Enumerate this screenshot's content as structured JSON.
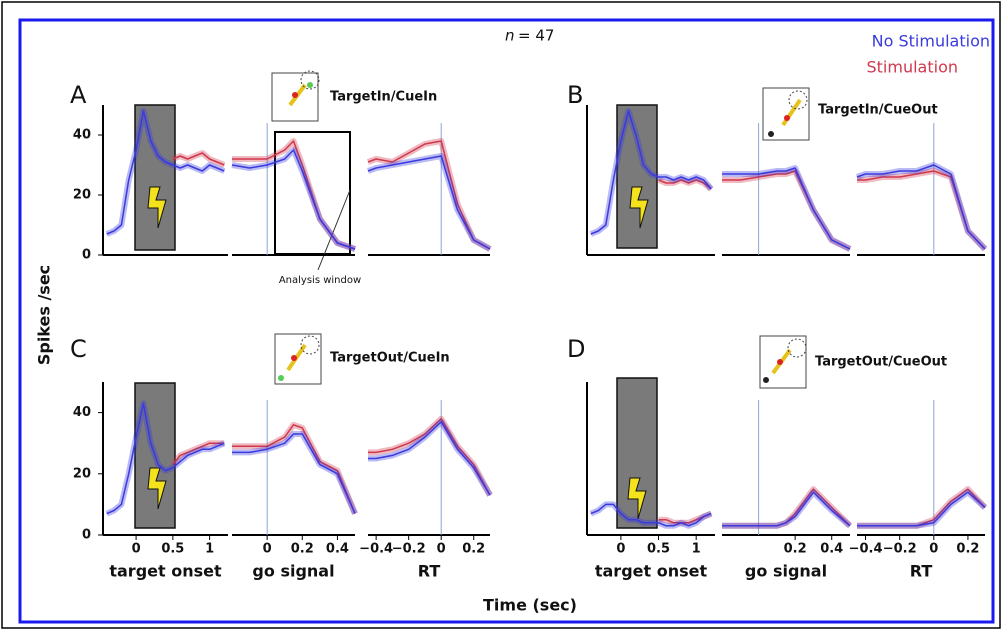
{
  "figure": {
    "n_symbol": "n",
    "n_value": "= 47",
    "y_label": "Spikes /sec",
    "x_label": "Time (sec)",
    "annotation": "Analysis window",
    "legend": [
      {
        "name": "No Stimulation",
        "color": "#3a3adf"
      },
      {
        "name": "Stimulation",
        "color": "#d0384c"
      }
    ]
  },
  "panels": [
    {
      "letter": "A",
      "condition": "TargetIn/CueIn"
    },
    {
      "letter": "B",
      "condition": "TargetIn/CueOut"
    },
    {
      "letter": "C",
      "condition": "TargetOut/CueIn"
    },
    {
      "letter": "D",
      "condition": "TargetOut/CueOut"
    }
  ],
  "chart_data": [
    {
      "type": "line",
      "x": [
        -0.4,
        -0.3,
        -0.2,
        -0.1,
        0,
        0.1,
        0.2,
        0.3,
        0.4,
        0.5,
        0.6,
        0.7,
        0.8,
        0.9,
        1,
        1.1,
        1.2
      ],
      "xlim": [
        -0.45,
        1.25
      ],
      "ylim": [
        0,
        50
      ],
      "yticks": [
        0,
        20,
        40
      ],
      "series": [
        {
          "values": [
            7,
            8,
            10,
            25,
            35,
            48,
            38,
            33,
            31,
            30,
            29,
            30,
            29,
            28,
            30,
            29,
            28
          ]
        },
        {
          "values": [
            null,
            null,
            null,
            null,
            null,
            null,
            null,
            null,
            null,
            32,
            33,
            32,
            33,
            34,
            32,
            31,
            30
          ]
        }
      ]
    },
    {
      "type": "line",
      "x": [
        -0.2,
        -0.1,
        0,
        0.1,
        0.15,
        0.2,
        0.3,
        0.4,
        0.5
      ],
      "xlim": [
        -0.2,
        0.5
      ],
      "ylim": [
        0,
        50
      ],
      "series": [
        {
          "values": [
            30,
            29,
            30,
            32,
            35,
            28,
            12,
            4,
            2
          ]
        },
        {
          "values": [
            32,
            32,
            32,
            35,
            38,
            30,
            12,
            4,
            2
          ]
        }
      ]
    },
    {
      "type": "line",
      "x": [
        -0.45,
        -0.4,
        -0.3,
        -0.2,
        -0.1,
        0,
        0.1,
        0.2,
        0.3
      ],
      "xlim": [
        -0.45,
        0.3
      ],
      "ylim": [
        0,
        50
      ],
      "series": [
        {
          "values": [
            28,
            29,
            30,
            31,
            32,
            33,
            15,
            5,
            2
          ]
        },
        {
          "values": [
            31,
            32,
            31,
            34,
            37,
            38,
            17,
            5,
            2
          ]
        }
      ]
    },
    {
      "type": "line",
      "x": [
        -0.4,
        -0.3,
        -0.2,
        -0.1,
        0,
        0.1,
        0.2,
        0.3,
        0.4,
        0.5,
        0.6,
        0.7,
        0.8,
        0.9,
        1,
        1.1,
        1.2
      ],
      "xlim": [
        -0.45,
        1.25
      ],
      "ylim": [
        0,
        50
      ],
      "series": [
        {
          "values": [
            7,
            8,
            10,
            25,
            38,
            48,
            40,
            30,
            27,
            26,
            26,
            25,
            26,
            25,
            26,
            25,
            22
          ]
        },
        {
          "values": [
            null,
            null,
            null,
            null,
            null,
            null,
            null,
            null,
            null,
            25,
            24,
            24,
            25,
            24,
            25,
            24,
            22
          ]
        }
      ]
    },
    {
      "type": "line",
      "x": [
        -0.2,
        -0.1,
        0,
        0.1,
        0.15,
        0.2,
        0.3,
        0.4,
        0.5
      ],
      "xlim": [
        -0.2,
        0.5
      ],
      "ylim": [
        0,
        50
      ],
      "series": [
        {
          "values": [
            27,
            27,
            27,
            28,
            28,
            29,
            15,
            5,
            2
          ]
        },
        {
          "values": [
            25,
            25,
            26,
            27,
            27,
            28,
            15,
            5,
            2
          ]
        }
      ]
    },
    {
      "type": "line",
      "x": [
        -0.45,
        -0.4,
        -0.3,
        -0.2,
        -0.1,
        0,
        0.1,
        0.2,
        0.3
      ],
      "xlim": [
        -0.45,
        0.3
      ],
      "ylim": [
        0,
        50
      ],
      "series": [
        {
          "values": [
            26,
            27,
            27,
            28,
            28,
            30,
            27,
            8,
            2
          ]
        },
        {
          "values": [
            25,
            25,
            26,
            26,
            27,
            28,
            26,
            8,
            2
          ]
        }
      ]
    },
    {
      "type": "line",
      "x": [
        -0.4,
        -0.3,
        -0.2,
        -0.1,
        0,
        0.1,
        0.2,
        0.3,
        0.4,
        0.5,
        0.6,
        0.7,
        0.8,
        0.9,
        1,
        1.1,
        1.2
      ],
      "xlim": [
        -0.45,
        1.25
      ],
      "ylim": [
        0,
        50
      ],
      "yticks": [
        0,
        20,
        40
      ],
      "xticks": [
        0,
        0.5,
        1
      ],
      "xlabel": "target onset",
      "series": [
        {
          "values": [
            7,
            8,
            10,
            20,
            32,
            43,
            30,
            23,
            21,
            22,
            24,
            26,
            27,
            28,
            28,
            29,
            30
          ]
        },
        {
          "values": [
            null,
            null,
            null,
            null,
            null,
            null,
            null,
            null,
            null,
            23,
            26,
            27,
            28,
            29,
            30,
            30,
            30
          ]
        }
      ]
    },
    {
      "type": "line",
      "x": [
        -0.2,
        -0.1,
        0,
        0.1,
        0.15,
        0.2,
        0.3,
        0.4,
        0.5
      ],
      "xlim": [
        -0.2,
        0.5
      ],
      "ylim": [
        0,
        50
      ],
      "xticks": [
        0,
        0.2,
        0.4
      ],
      "xlabel": "go signal",
      "series": [
        {
          "values": [
            27,
            27,
            28,
            30,
            33,
            33,
            23,
            20,
            7
          ]
        },
        {
          "values": [
            29,
            29,
            29,
            32,
            36,
            35,
            24,
            21,
            7
          ]
        }
      ]
    },
    {
      "type": "line",
      "x": [
        -0.45,
        -0.4,
        -0.3,
        -0.2,
        -0.1,
        0,
        0.1,
        0.2,
        0.3
      ],
      "xlim": [
        -0.45,
        0.3
      ],
      "ylim": [
        0,
        50
      ],
      "xticks": [
        {
          "value": -0.4,
          "label": "−0.4"
        },
        {
          "value": -0.2,
          "label": "−0.2"
        },
        0,
        0.2
      ],
      "xlabel": "RT",
      "series": [
        {
          "values": [
            25,
            25,
            26,
            28,
            32,
            37,
            28,
            22,
            13
          ]
        },
        {
          "values": [
            27,
            27,
            28,
            30,
            33,
            38,
            29,
            23,
            13
          ]
        }
      ]
    },
    {
      "type": "line",
      "x": [
        -0.4,
        -0.3,
        -0.2,
        -0.1,
        0,
        0.1,
        0.2,
        0.3,
        0.4,
        0.5,
        0.6,
        0.7,
        0.8,
        0.9,
        1,
        1.1,
        1.2
      ],
      "xlim": [
        -0.45,
        1.25
      ],
      "ylim": [
        0,
        50
      ],
      "xticks": [
        0,
        0.5,
        1
      ],
      "xlabel": "target onset",
      "series": [
        {
          "values": [
            7,
            8,
            10,
            10,
            7,
            5,
            5,
            4,
            4,
            4,
            3,
            3,
            4,
            3,
            4,
            6,
            7
          ]
        },
        {
          "values": [
            null,
            null,
            null,
            null,
            null,
            null,
            null,
            null,
            null,
            5,
            5,
            4,
            4,
            4,
            5,
            6,
            7
          ]
        }
      ]
    },
    {
      "type": "line",
      "x": [
        -0.2,
        -0.1,
        0,
        0.1,
        0.15,
        0.2,
        0.3,
        0.4,
        0.5
      ],
      "xlim": [
        -0.2,
        0.5
      ],
      "ylim": [
        0,
        50
      ],
      "xticks": [
        0.2,
        0.4
      ],
      "xlabel": "go signal",
      "series": [
        {
          "values": [
            3,
            3,
            3,
            3,
            4,
            6,
            14,
            8,
            3
          ]
        },
        {
          "values": [
            3,
            3,
            3,
            3,
            4,
            7,
            15,
            9,
            3
          ]
        }
      ]
    },
    {
      "type": "line",
      "x": [
        -0.45,
        -0.4,
        -0.3,
        -0.2,
        -0.1,
        0,
        0.1,
        0.2,
        0.3
      ],
      "xlim": [
        -0.45,
        0.3
      ],
      "ylim": [
        0,
        50
      ],
      "xticks": [
        {
          "value": -0.4,
          "label": "−0.4"
        },
        {
          "value": -0.2,
          "label": "−0.2"
        },
        0,
        0.2
      ],
      "xlabel": "RT",
      "series": [
        {
          "values": [
            3,
            3,
            3,
            3,
            3,
            4,
            10,
            14,
            9
          ]
        },
        {
          "values": [
            3,
            3,
            3,
            3,
            3,
            5,
            11,
            15,
            9
          ]
        }
      ]
    }
  ]
}
